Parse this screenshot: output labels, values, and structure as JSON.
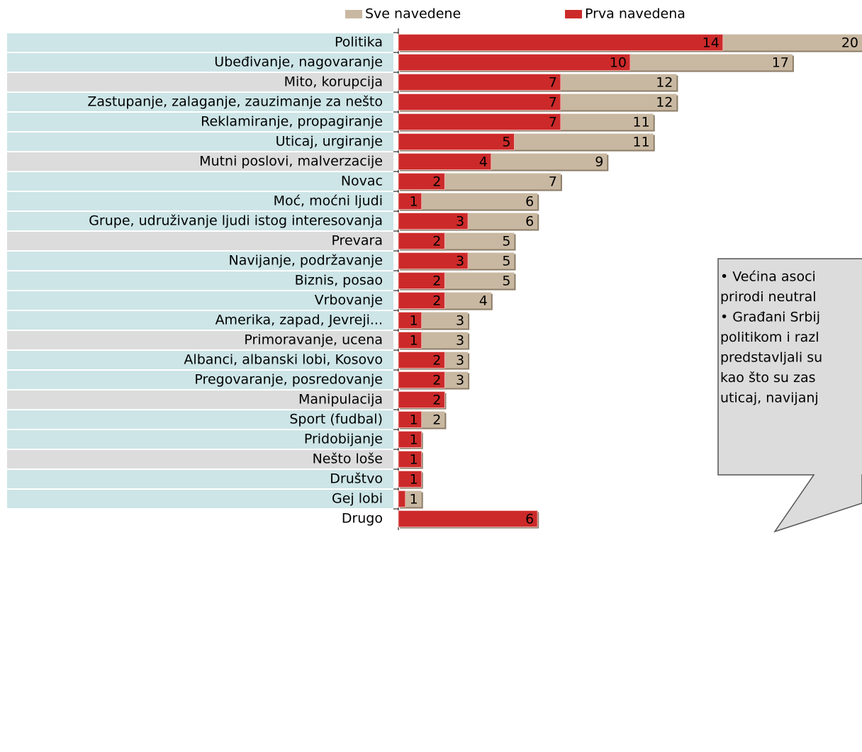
{
  "chart_data": {
    "type": "bar",
    "orientation": "horizontal",
    "overlap": true,
    "categories": [
      "Politika",
      "Ubeđivanje, nagovaranje",
      "Mito, korupcija",
      "Zastupanje, zalaganje, zauzimanje za nešto",
      "Reklamiranje, propagiranje",
      "Uticaj, urgiranje",
      "Mutni poslovi, malverzacije",
      "Novac",
      "Moć, moćni ljudi",
      "Grupe, udruživanje ljudi istog interesovanja",
      "Prevara",
      "Navijanje, podržavanje",
      "Biznis, posao",
      "Vrbovanje",
      "Amerika, zapad, Jevreji...",
      "Primoravanje, ucena",
      "Albanci, albanski lobi, Kosovo",
      "Pregovaranje, posredovanje",
      "Manipulacija",
      "Sport (fudbal)",
      "Pridobijanje",
      "Nešto loše",
      "Društvo",
      "Gej lobi",
      "Drugo"
    ],
    "category_colors": [
      "#cde5e7",
      "#cde5e7",
      "#dcdcdc",
      "#cde5e7",
      "#cde5e7",
      "#cde5e7",
      "#dcdcdc",
      "#cde5e7",
      "#cde5e7",
      "#cde5e7",
      "#dcdcdc",
      "#cde5e7",
      "#cde5e7",
      "#cde5e7",
      "#cde5e7",
      "#dcdcdc",
      "#cde5e7",
      "#cde5e7",
      "#dcdcdc",
      "#cde5e7",
      "#cde5e7",
      "#dcdcdc",
      "#cde5e7",
      "#cde5e7",
      null
    ],
    "series": [
      {
        "name": "Sve navedene",
        "color": "#c9b8a1",
        "values": [
          20,
          17,
          12,
          12,
          11,
          11,
          9,
          7,
          6,
          6,
          5,
          5,
          5,
          4,
          3,
          3,
          3,
          3,
          2,
          2,
          1,
          1,
          1,
          1,
          6
        ]
      },
      {
        "name": "Prva navedena",
        "color": "#cc2a2a",
        "values": [
          14,
          10,
          7,
          7,
          7,
          5,
          4,
          2,
          1,
          3,
          2,
          3,
          2,
          2,
          1,
          1,
          2,
          2,
          2,
          1,
          1,
          1,
          1,
          0.3,
          6
        ],
        "value_labels": [
          "14",
          "10",
          "7",
          "7",
          "7",
          "5",
          "4",
          "2",
          "1",
          "3",
          "2",
          "3",
          "2",
          "2",
          "1",
          "1",
          "2",
          "2",
          "2",
          "1",
          "1",
          "1",
          "1",
          null,
          "6"
        ]
      }
    ],
    "xlim": [
      0,
      20
    ],
    "annotation": [
      "• Većina asoci",
      "prirodi neutral",
      "• Građani Srbij",
      "politikom i razl",
      "predstavljali su",
      "kao što su zas",
      "uticaj, navijanj"
    ]
  }
}
